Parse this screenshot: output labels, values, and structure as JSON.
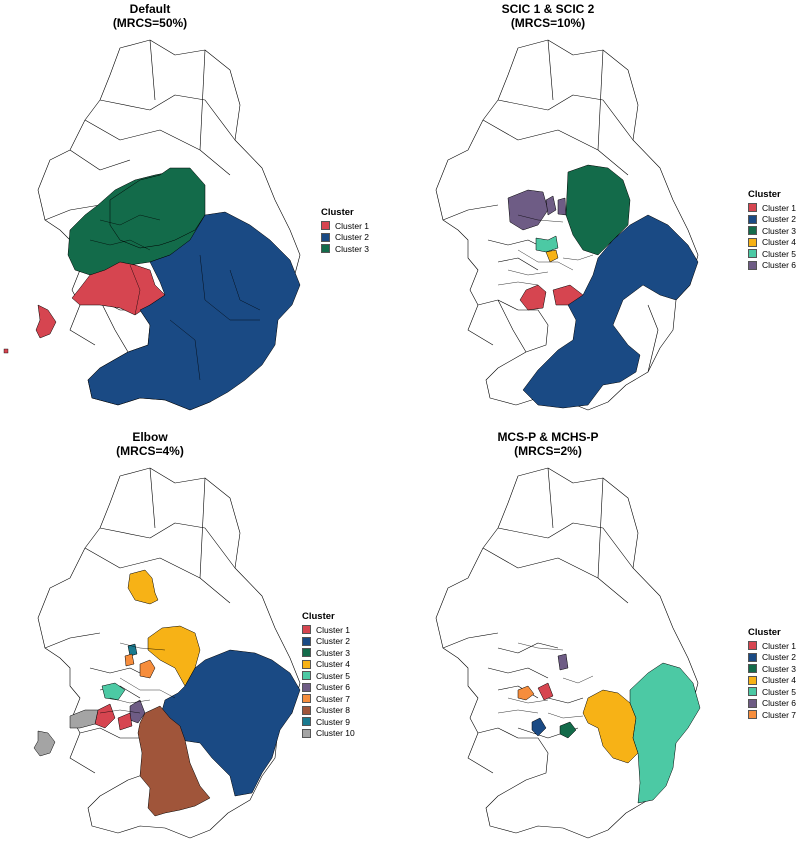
{
  "colors": {
    "c1": "#d64550",
    "c2": "#1a4a84",
    "c3": "#136b4a",
    "c4": "#f7b216",
    "c5": "#4cc9a4",
    "c6": "#6e5c85",
    "c7": "#f68d3c",
    "c8": "#a0553a",
    "c9": "#1a7a8f",
    "c10": "#a4a4a4",
    "outline": "#000000",
    "blank": "#ffffff"
  },
  "panels": [
    {
      "title": "Default",
      "subtitle": "(MRCS=50%)",
      "legend_title": "Cluster",
      "legend": [
        {
          "label": "Cluster 1",
          "color": "#d64550"
        },
        {
          "label": "Cluster 2",
          "color": "#1a4a84"
        },
        {
          "label": "Cluster 3",
          "color": "#136b4a"
        }
      ]
    },
    {
      "title": "SCIC 1 & SCIC 2",
      "subtitle": "(MRCS=10%)",
      "legend_title": "Cluster",
      "legend": [
        {
          "label": "Cluster 1",
          "color": "#d64550"
        },
        {
          "label": "Cluster 2",
          "color": "#1a4a84"
        },
        {
          "label": "Cluster 3",
          "color": "#136b4a"
        },
        {
          "label": "Cluster 4",
          "color": "#f7b216"
        },
        {
          "label": "Cluster 5",
          "color": "#4cc9a4"
        },
        {
          "label": "Cluster 6",
          "color": "#6e5c85"
        }
      ]
    },
    {
      "title": "Elbow",
      "subtitle": "(MRCS=4%)",
      "legend_title": "Cluster",
      "legend": [
        {
          "label": "Cluster 1",
          "color": "#d64550"
        },
        {
          "label": "Cluster 2",
          "color": "#1a4a84"
        },
        {
          "label": "Cluster 3",
          "color": "#136b4a"
        },
        {
          "label": "Cluster 4",
          "color": "#f7b216"
        },
        {
          "label": "Cluster 5",
          "color": "#4cc9a4"
        },
        {
          "label": "Cluster 6",
          "color": "#6e5c85"
        },
        {
          "label": "Cluster 7",
          "color": "#f68d3c"
        },
        {
          "label": "Cluster 8",
          "color": "#a0553a"
        },
        {
          "label": "Cluster 9",
          "color": "#1a7a8f"
        },
        {
          "label": "Cluster 10",
          "color": "#a4a4a4"
        }
      ]
    },
    {
      "title": "MCS-P & MCHS-P",
      "subtitle": "(MRCS=2%)",
      "legend_title": "Cluster",
      "legend": [
        {
          "label": "Cluster 1",
          "color": "#d64550"
        },
        {
          "label": "Cluster 2",
          "color": "#1a4a84"
        },
        {
          "label": "Cluster 3",
          "color": "#136b4a"
        },
        {
          "label": "Cluster 4",
          "color": "#f7b216"
        },
        {
          "label": "Cluster 5",
          "color": "#4cc9a4"
        },
        {
          "label": "Cluster 6",
          "color": "#6e5c85"
        },
        {
          "label": "Cluster 7",
          "color": "#f68d3c"
        }
      ]
    }
  ]
}
